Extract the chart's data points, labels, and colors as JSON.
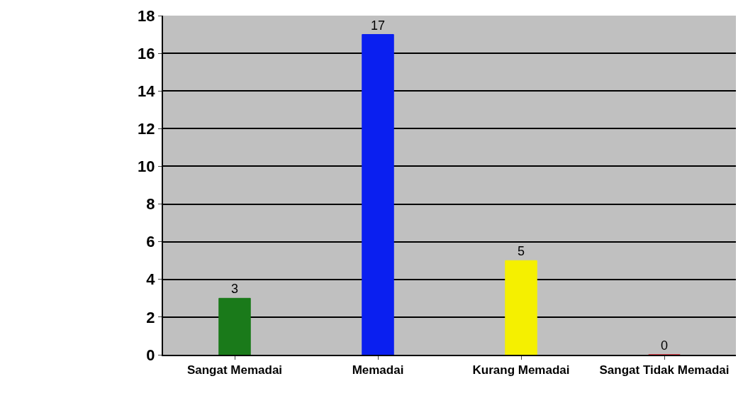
{
  "chart_data": {
    "type": "bar",
    "categories": [
      "Sangat Memadai",
      "Memadai",
      "Kurang Memadai",
      "Sangat Tidak Memadai"
    ],
    "values": [
      3,
      17,
      5,
      0
    ],
    "colors": [
      "#1a7a1a",
      "#0a1ff0",
      "#f5f000",
      "#e01020"
    ],
    "ylim": [
      0,
      18
    ],
    "yticks": [
      0,
      2,
      4,
      6,
      8,
      10,
      12,
      14,
      16,
      18
    ],
    "grid": "y",
    "data_labels": true,
    "legend": false
  }
}
